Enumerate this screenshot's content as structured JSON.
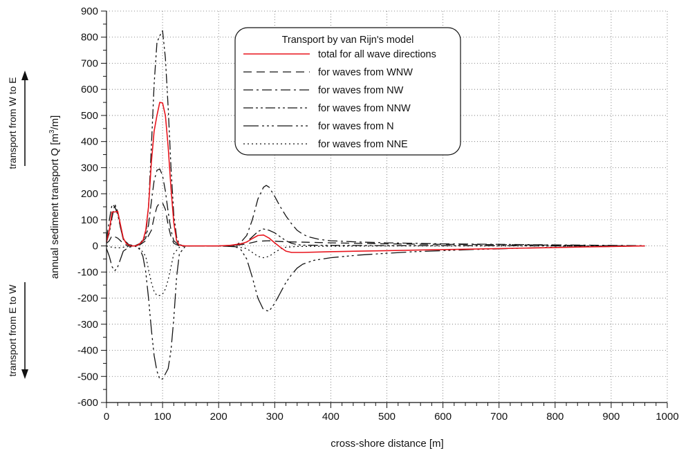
{
  "chart_data": {
    "type": "line",
    "title": "",
    "xlabel": "cross-shore distance [m]",
    "ylabel_prefix": "annual sediment transport Q [m",
    "ylabel_sup": "3",
    "ylabel_suffix": "/m]",
    "xlim": [
      0,
      1000
    ],
    "ylim": [
      -600,
      900
    ],
    "xticks": [
      0,
      100,
      200,
      300,
      400,
      500,
      600,
      700,
      800,
      900,
      1000
    ],
    "yticks": [
      -600,
      -500,
      -400,
      -300,
      -200,
      -100,
      0,
      100,
      200,
      300,
      400,
      500,
      600,
      700,
      800,
      900
    ],
    "grid": true,
    "legend_title": "Transport by van Rijn's model",
    "legend_position": "top-center",
    "side_labels": {
      "upper": "transport from W to E",
      "lower": "transport from E to W"
    },
    "series": [
      {
        "name": "total for all wave directions",
        "color": "#e8141c",
        "dash": "solid",
        "points": [
          [
            0,
            15
          ],
          [
            5,
            60
          ],
          [
            10,
            130
          ],
          [
            15,
            130
          ],
          [
            20,
            133
          ],
          [
            25,
            80
          ],
          [
            30,
            30
          ],
          [
            35,
            10
          ],
          [
            40,
            3
          ],
          [
            45,
            0
          ],
          [
            50,
            0
          ],
          [
            55,
            2
          ],
          [
            60,
            10
          ],
          [
            65,
            20
          ],
          [
            70,
            60
          ],
          [
            75,
            150
          ],
          [
            80,
            320
          ],
          [
            85,
            440
          ],
          [
            90,
            500
          ],
          [
            95,
            550
          ],
          [
            100,
            548
          ],
          [
            105,
            500
          ],
          [
            110,
            380
          ],
          [
            115,
            220
          ],
          [
            120,
            90
          ],
          [
            125,
            20
          ],
          [
            130,
            3
          ],
          [
            140,
            0
          ],
          [
            150,
            0
          ],
          [
            200,
            0
          ],
          [
            220,
            2
          ],
          [
            240,
            8
          ],
          [
            250,
            15
          ],
          [
            260,
            28
          ],
          [
            270,
            40
          ],
          [
            280,
            42
          ],
          [
            290,
            30
          ],
          [
            300,
            12
          ],
          [
            310,
            -5
          ],
          [
            320,
            -20
          ],
          [
            330,
            -25
          ],
          [
            350,
            -25
          ],
          [
            400,
            -22
          ],
          [
            500,
            -18
          ],
          [
            600,
            -14
          ],
          [
            700,
            -10
          ],
          [
            800,
            -6
          ],
          [
            850,
            -4
          ],
          [
            900,
            -2
          ],
          [
            960,
            0
          ]
        ]
      },
      {
        "name": "for waves from WNW",
        "color": "#111111",
        "dash": "12 7",
        "points": [
          [
            0,
            10
          ],
          [
            5,
            20
          ],
          [
            10,
            40
          ],
          [
            15,
            35
          ],
          [
            20,
            30
          ],
          [
            25,
            20
          ],
          [
            30,
            8
          ],
          [
            40,
            0
          ],
          [
            50,
            0
          ],
          [
            60,
            5
          ],
          [
            70,
            20
          ],
          [
            80,
            60
          ],
          [
            85,
            110
          ],
          [
            90,
            150
          ],
          [
            95,
            165
          ],
          [
            100,
            165
          ],
          [
            105,
            140
          ],
          [
            110,
            80
          ],
          [
            115,
            35
          ],
          [
            120,
            10
          ],
          [
            130,
            0
          ],
          [
            140,
            0
          ],
          [
            200,
            0
          ],
          [
            230,
            2
          ],
          [
            250,
            8
          ],
          [
            270,
            18
          ],
          [
            290,
            20
          ],
          [
            300,
            18
          ],
          [
            320,
            16
          ],
          [
            360,
            14
          ],
          [
            400,
            12
          ],
          [
            500,
            8
          ],
          [
            600,
            6
          ],
          [
            700,
            5
          ],
          [
            800,
            3
          ],
          [
            900,
            1
          ],
          [
            960,
            0
          ]
        ]
      },
      {
        "name": "for waves from NW",
        "color": "#111111",
        "dash": "14 5 3 5",
        "points": [
          [
            0,
            25
          ],
          [
            5,
            100
          ],
          [
            10,
            160
          ],
          [
            15,
            150
          ],
          [
            20,
            120
          ],
          [
            25,
            70
          ],
          [
            30,
            25
          ],
          [
            40,
            5
          ],
          [
            50,
            0
          ],
          [
            60,
            8
          ],
          [
            70,
            30
          ],
          [
            75,
            80
          ],
          [
            80,
            170
          ],
          [
            85,
            250
          ],
          [
            90,
            290
          ],
          [
            95,
            295
          ],
          [
            100,
            270
          ],
          [
            105,
            210
          ],
          [
            110,
            130
          ],
          [
            115,
            60
          ],
          [
            120,
            20
          ],
          [
            130,
            2
          ],
          [
            140,
            0
          ],
          [
            200,
            0
          ],
          [
            230,
            3
          ],
          [
            240,
            15
          ],
          [
            250,
            40
          ],
          [
            260,
            100
          ],
          [
            270,
            180
          ],
          [
            280,
            225
          ],
          [
            285,
            232
          ],
          [
            290,
            225
          ],
          [
            300,
            190
          ],
          [
            310,
            150
          ],
          [
            320,
            115
          ],
          [
            330,
            85
          ],
          [
            340,
            60
          ],
          [
            350,
            45
          ],
          [
            360,
            35
          ],
          [
            380,
            25
          ],
          [
            400,
            20
          ],
          [
            450,
            15
          ],
          [
            500,
            12
          ],
          [
            550,
            10
          ],
          [
            600,
            8
          ],
          [
            700,
            6
          ],
          [
            800,
            4
          ],
          [
            900,
            2
          ],
          [
            960,
            1
          ]
        ]
      },
      {
        "name": "for waves from NNW",
        "color": "#111111",
        "dash": "14 4 3 4 3 4",
        "points": [
          [
            0,
            15
          ],
          [
            5,
            50
          ],
          [
            10,
            110
          ],
          [
            15,
            160
          ],
          [
            20,
            130
          ],
          [
            25,
            70
          ],
          [
            30,
            25
          ],
          [
            40,
            5
          ],
          [
            50,
            0
          ],
          [
            60,
            10
          ],
          [
            70,
            40
          ],
          [
            75,
            150
          ],
          [
            80,
            380
          ],
          [
            85,
            620
          ],
          [
            90,
            780
          ],
          [
            95,
            805
          ],
          [
            100,
            825
          ],
          [
            105,
            720
          ],
          [
            110,
            530
          ],
          [
            115,
            300
          ],
          [
            120,
            120
          ],
          [
            125,
            35
          ],
          [
            130,
            5
          ],
          [
            140,
            0
          ],
          [
            200,
            0
          ],
          [
            230,
            3
          ],
          [
            250,
            15
          ],
          [
            260,
            35
          ],
          [
            270,
            55
          ],
          [
            280,
            65
          ],
          [
            290,
            60
          ],
          [
            300,
            50
          ],
          [
            310,
            35
          ],
          [
            320,
            20
          ],
          [
            330,
            10
          ],
          [
            340,
            5
          ],
          [
            350,
            3
          ],
          [
            400,
            2
          ],
          [
            500,
            1
          ],
          [
            600,
            1
          ],
          [
            700,
            1
          ],
          [
            800,
            0
          ],
          [
            900,
            0
          ],
          [
            960,
            0
          ]
        ]
      },
      {
        "name": "for waves from N",
        "color": "#111111",
        "dash": "22 5 3 4 3 4 3 5",
        "points": [
          [
            0,
            -10
          ],
          [
            5,
            -40
          ],
          [
            10,
            -80
          ],
          [
            15,
            -95
          ],
          [
            20,
            -80
          ],
          [
            25,
            -50
          ],
          [
            30,
            -20
          ],
          [
            40,
            -5
          ],
          [
            50,
            0
          ],
          [
            55,
            -5
          ],
          [
            60,
            -15
          ],
          [
            65,
            -40
          ],
          [
            70,
            -100
          ],
          [
            75,
            -200
          ],
          [
            80,
            -320
          ],
          [
            85,
            -420
          ],
          [
            90,
            -480
          ],
          [
            95,
            -510
          ],
          [
            100,
            -510
          ],
          [
            105,
            -490
          ],
          [
            110,
            -470
          ],
          [
            115,
            -400
          ],
          [
            120,
            -280
          ],
          [
            125,
            -120
          ],
          [
            130,
            -30
          ],
          [
            140,
            -3
          ],
          [
            150,
            0
          ],
          [
            200,
            0
          ],
          [
            230,
            -3
          ],
          [
            240,
            -15
          ],
          [
            250,
            -50
          ],
          [
            260,
            -120
          ],
          [
            270,
            -200
          ],
          [
            280,
            -245
          ],
          [
            290,
            -250
          ],
          [
            300,
            -220
          ],
          [
            310,
            -180
          ],
          [
            320,
            -140
          ],
          [
            330,
            -110
          ],
          [
            340,
            -85
          ],
          [
            350,
            -70
          ],
          [
            370,
            -55
          ],
          [
            400,
            -45
          ],
          [
            450,
            -35
          ],
          [
            500,
            -28
          ],
          [
            550,
            -22
          ],
          [
            600,
            -18
          ],
          [
            650,
            -14
          ],
          [
            700,
            -11
          ],
          [
            750,
            -8
          ],
          [
            800,
            -5
          ],
          [
            850,
            -3
          ],
          [
            900,
            -2
          ],
          [
            960,
            0
          ]
        ]
      },
      {
        "name": "for waves from NNE",
        "color": "#111111",
        "dash": "2 4",
        "points": [
          [
            0,
            0
          ],
          [
            10,
            -5
          ],
          [
            20,
            -8
          ],
          [
            30,
            -5
          ],
          [
            40,
            -2
          ],
          [
            50,
            0
          ],
          [
            60,
            -10
          ],
          [
            70,
            -40
          ],
          [
            75,
            -90
          ],
          [
            80,
            -140
          ],
          [
            85,
            -175
          ],
          [
            90,
            -190
          ],
          [
            95,
            -190
          ],
          [
            100,
            -185
          ],
          [
            105,
            -165
          ],
          [
            110,
            -130
          ],
          [
            115,
            -80
          ],
          [
            120,
            -30
          ],
          [
            130,
            -5
          ],
          [
            140,
            0
          ],
          [
            200,
            0
          ],
          [
            230,
            -2
          ],
          [
            250,
            -10
          ],
          [
            260,
            -25
          ],
          [
            270,
            -40
          ],
          [
            280,
            -45
          ],
          [
            290,
            -40
          ],
          [
            300,
            -25
          ],
          [
            310,
            -12
          ],
          [
            320,
            -5
          ],
          [
            340,
            -2
          ],
          [
            400,
            -1
          ],
          [
            500,
            0
          ],
          [
            600,
            0
          ],
          [
            700,
            0
          ],
          [
            800,
            0
          ],
          [
            960,
            0
          ]
        ]
      }
    ]
  }
}
